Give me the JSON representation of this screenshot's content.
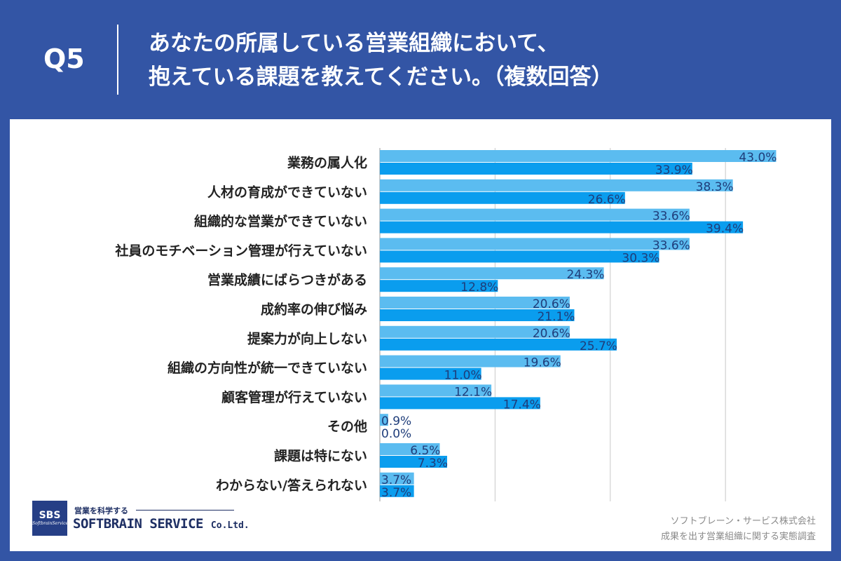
{
  "header": {
    "qnum": "Q5",
    "title_line1": "あなたの所属している営業組織において、",
    "title_line2": "抱えている課題を教えてください。（複数回答）"
  },
  "colors": {
    "background": "#3355a5",
    "series_a": "#5bbcf0",
    "series_b": "#0a9dee",
    "label_text": "#1f3d7a",
    "grid": "#c8c8c8"
  },
  "chart_data": {
    "type": "bar",
    "orientation": "horizontal",
    "categories": [
      "業務の属人化",
      "人材の育成ができていない",
      "組織的な営業ができていない",
      "社員のモチベーション管理が行えていない",
      "営業成績にばらつきがある",
      "成約率の伸び悩み",
      "提案力が向上しない",
      "組織の方向性が統一できていない",
      "顧客管理が行えていない",
      "その他",
      "課題は特にない",
      "わからない/答えられない"
    ],
    "series": [
      {
        "values": [
          43.0,
          38.3,
          33.6,
          33.6,
          24.3,
          20.6,
          20.6,
          19.6,
          12.1,
          0.9,
          6.5,
          3.7
        ]
      },
      {
        "values": [
          33.9,
          26.6,
          39.4,
          30.3,
          12.8,
          21.1,
          25.7,
          11.0,
          17.4,
          0.0,
          7.3,
          3.7
        ]
      }
    ],
    "xlim": [
      0,
      50
    ],
    "gridlines": [
      0,
      12.5,
      25,
      37.5
    ],
    "value_format": "percent_1dp",
    "grid": true
  },
  "logo": {
    "abbr": "SBS",
    "sub": "SoftbrainService",
    "tagline": "営業を科学する",
    "name": "SOFTBRAIN SERVICE",
    "name_suffix": "Co.Ltd."
  },
  "credit": {
    "line1": "ソフトブレーン・サービス株式会社",
    "line2": "成果を出す営業組織に関する実態調査"
  }
}
